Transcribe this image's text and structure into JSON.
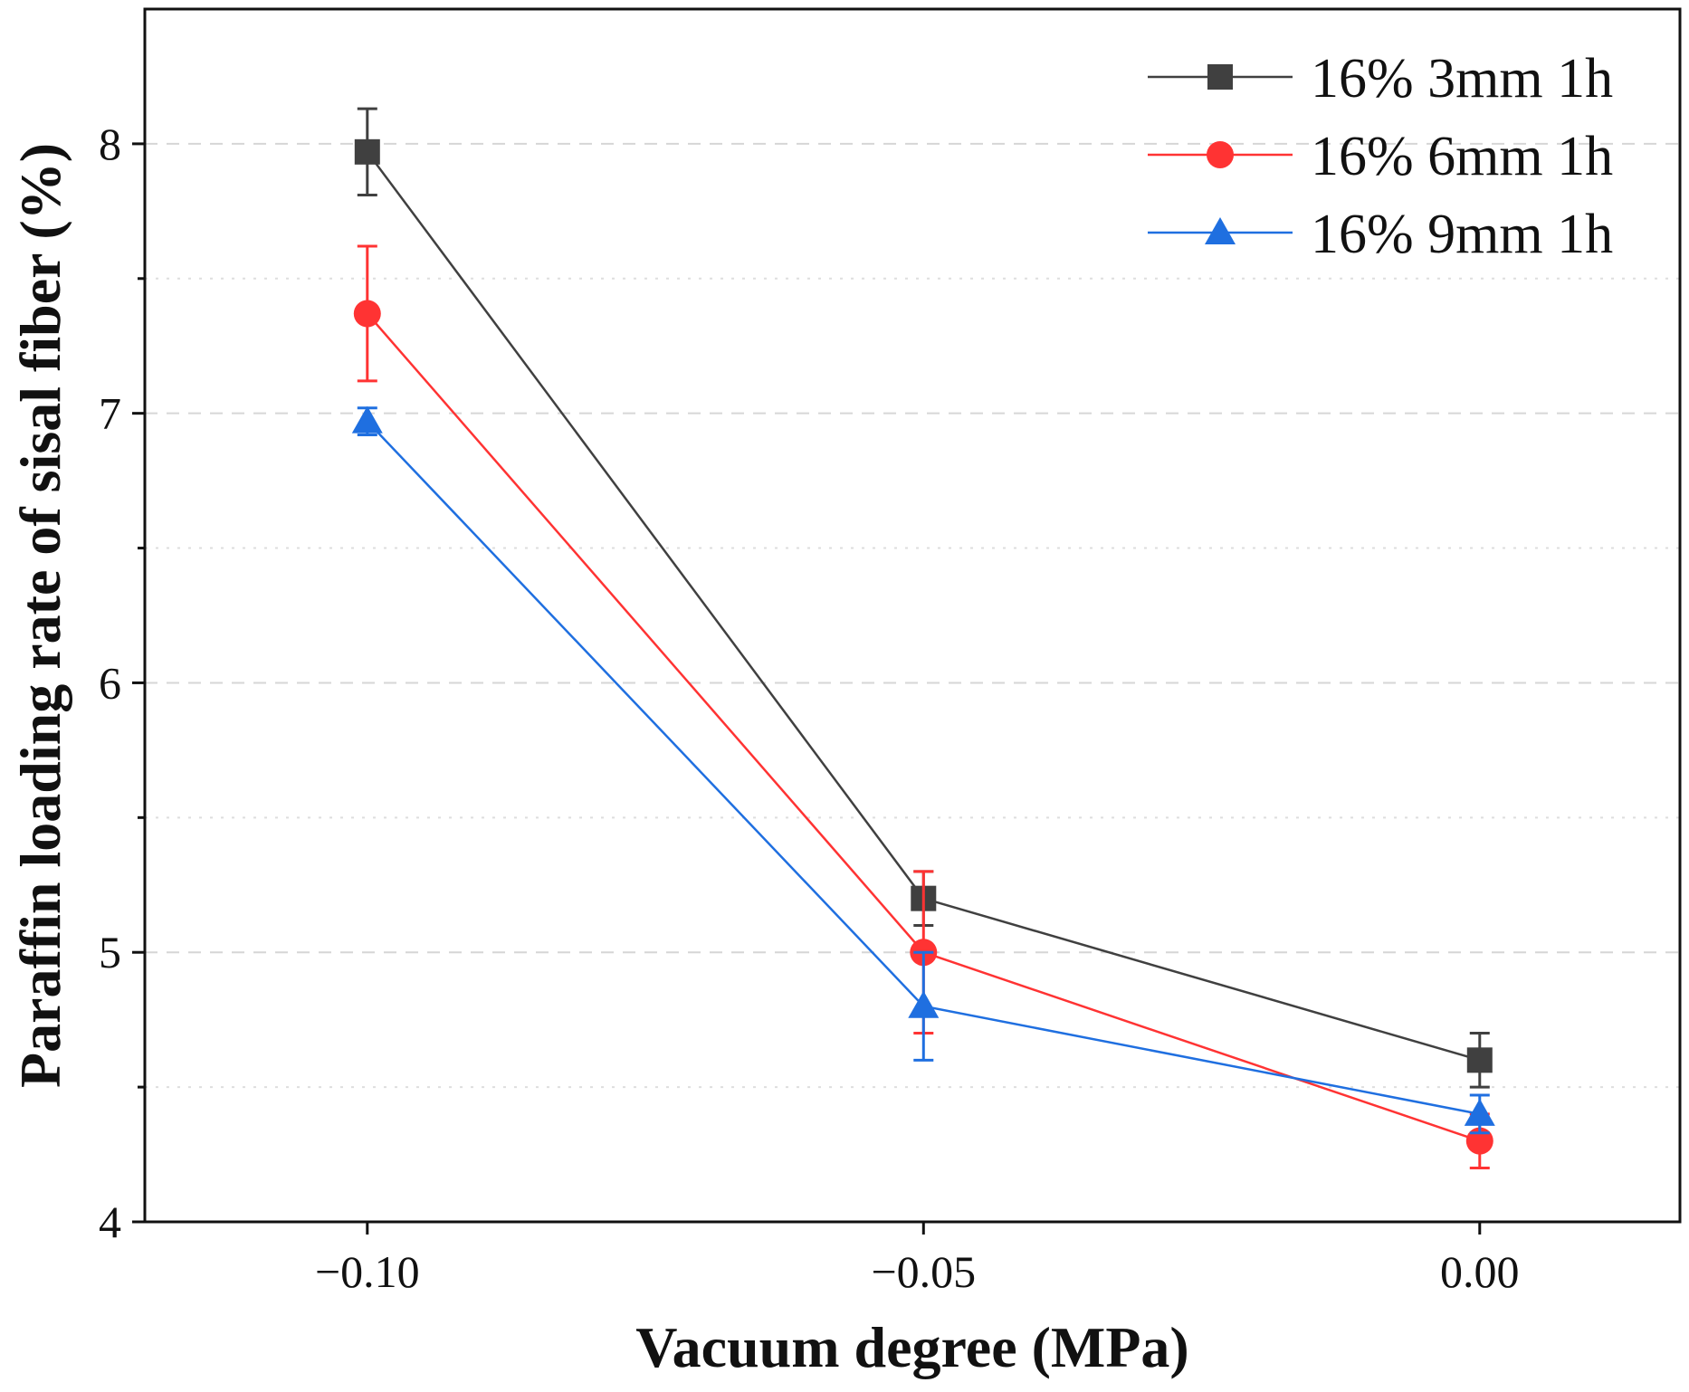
{
  "chart_data": {
    "type": "line",
    "title": "",
    "xlabel": "Vacuum degree (MPa)",
    "ylabel": "Paraffin loading rate of sisal fiber (%)",
    "xlim": [
      -0.12,
      0.018
    ],
    "ylim": [
      4,
      8.5
    ],
    "x": [
      -0.1,
      -0.05,
      0.0
    ],
    "x_tick_labels": [
      "−0.10",
      "−0.05",
      "0.00"
    ],
    "y_ticks": [
      4,
      5,
      6,
      7,
      8
    ],
    "y_tick_labels": [
      "4",
      "5",
      "6",
      "7",
      "8"
    ],
    "y_minor_ticks": [
      4.5,
      5.5,
      6.5,
      7.5
    ],
    "grid": "horizontal dashed",
    "legend_position": "top-right",
    "series": [
      {
        "name": "16% 3mm 1h",
        "color": "#404040",
        "marker": "square",
        "values": [
          7.97,
          5.2,
          4.6
        ],
        "errors": [
          0.16,
          0.1,
          0.1
        ]
      },
      {
        "name": "16% 6mm 1h",
        "color": "#ff3333",
        "marker": "circle",
        "values": [
          7.37,
          5.0,
          4.3
        ],
        "errors": [
          0.25,
          0.3,
          0.1
        ]
      },
      {
        "name": "16% 9mm 1h",
        "color": "#1f6fe0",
        "marker": "triangle",
        "values": [
          6.97,
          4.8,
          4.4
        ],
        "errors": [
          0.05,
          0.2,
          0.07
        ]
      }
    ]
  }
}
